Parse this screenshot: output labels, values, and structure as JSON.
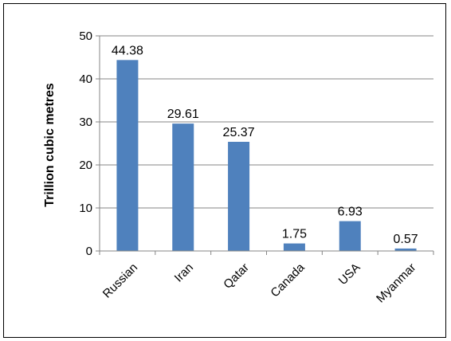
{
  "chart_data": {
    "type": "bar",
    "title": "",
    "xlabel": "",
    "ylabel": "Trillion cubic metres",
    "ylim": [
      0,
      50
    ],
    "yticks": [
      0,
      10,
      20,
      30,
      40,
      50
    ],
    "grid": true,
    "legend": "none",
    "categories": [
      "Russian",
      "Iran",
      "Qatar",
      "Canada",
      "USA",
      "Myanmar"
    ],
    "values": [
      44.38,
      29.61,
      25.37,
      1.75,
      6.93,
      0.57
    ],
    "data_labels": [
      "44.38",
      "29.61",
      "25.37",
      "1.75",
      "6.93",
      "0.57"
    ],
    "bar_color": "#4f81bd",
    "grid_color": "#868686"
  }
}
